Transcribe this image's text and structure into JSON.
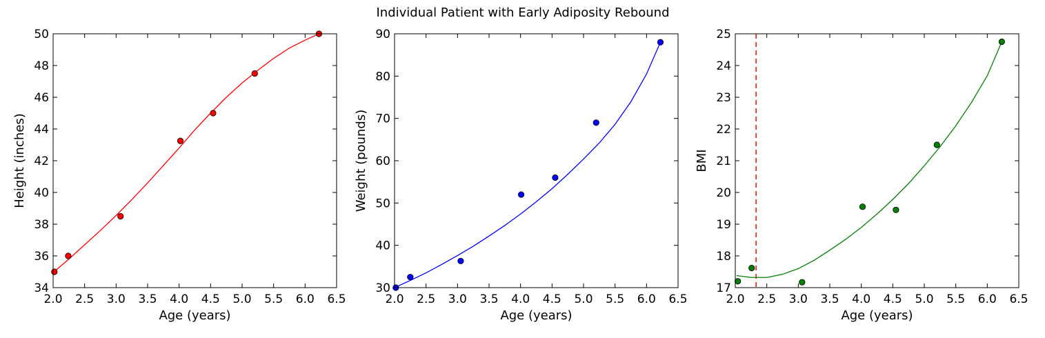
{
  "figure": {
    "title": "Individual Patient with Early Adiposity Rebound"
  },
  "chart_data": [
    {
      "type": "scatter",
      "xlabel": "Age (years)",
      "ylabel": "Height (inches)",
      "xlim": [
        2.0,
        6.5
      ],
      "ylim": [
        34,
        50
      ],
      "xticks": [
        2.0,
        2.5,
        3.0,
        3.5,
        4.0,
        4.5,
        5.0,
        5.5,
        6.0,
        6.5
      ],
      "yticks": [
        34,
        36,
        38,
        40,
        42,
        44,
        46,
        48,
        50
      ],
      "grid": false,
      "color": "#ff0000",
      "points": {
        "x": [
          2.02,
          2.24,
          3.07,
          4.02,
          4.54,
          5.2,
          6.22
        ],
        "y": [
          35.0,
          36.0,
          38.5,
          43.25,
          45.0,
          47.5,
          50.0
        ]
      },
      "fit_curve": {
        "x": [
          2.0,
          2.25,
          2.5,
          2.75,
          3.0,
          3.25,
          3.5,
          3.75,
          4.0,
          4.25,
          4.5,
          4.75,
          5.0,
          5.25,
          5.5,
          5.75,
          6.0,
          6.22
        ],
        "y": [
          34.95,
          35.8,
          36.7,
          37.6,
          38.55,
          39.55,
          40.6,
          41.7,
          42.8,
          43.95,
          45.0,
          46.0,
          46.9,
          47.7,
          48.45,
          49.1,
          49.6,
          50.0
        ]
      }
    },
    {
      "type": "scatter",
      "xlabel": "Age (years)",
      "ylabel": "Weight (pounds)",
      "xlim": [
        2.0,
        6.5
      ],
      "ylim": [
        30,
        90
      ],
      "xticks": [
        2.0,
        2.5,
        3.0,
        3.5,
        4.0,
        4.5,
        5.0,
        5.5,
        6.0,
        6.5
      ],
      "yticks": [
        30,
        40,
        50,
        60,
        70,
        80,
        90
      ],
      "grid": false,
      "color": "#0000ff",
      "points": {
        "x": [
          2.02,
          2.25,
          3.05,
          4.01,
          4.55,
          5.2,
          6.22
        ],
        "y": [
          30.0,
          32.5,
          36.3,
          52.0,
          56.0,
          69.0,
          88.0
        ]
      },
      "fit_curve": {
        "x": [
          2.0,
          2.25,
          2.5,
          2.75,
          3.0,
          3.25,
          3.5,
          3.75,
          4.0,
          4.25,
          4.5,
          4.75,
          5.0,
          5.25,
          5.5,
          5.75,
          6.0,
          6.22
        ],
        "y": [
          30.0,
          31.7,
          33.5,
          35.5,
          37.6,
          39.8,
          42.2,
          44.7,
          47.4,
          50.3,
          53.4,
          56.8,
          60.4,
          64.2,
          68.6,
          73.9,
          80.5,
          88.0
        ]
      }
    },
    {
      "type": "scatter",
      "xlabel": "Age (years)",
      "ylabel": "BMI",
      "xlim": [
        2.0,
        6.5
      ],
      "ylim": [
        17,
        25
      ],
      "xticks": [
        2.0,
        2.5,
        3.0,
        3.5,
        4.0,
        4.5,
        5.0,
        5.5,
        6.0,
        6.5
      ],
      "yticks": [
        17,
        18,
        19,
        20,
        21,
        22,
        23,
        24,
        25
      ],
      "grid": false,
      "color": "#008000",
      "points": {
        "x": [
          2.04,
          2.26,
          3.06,
          4.02,
          4.55,
          5.2,
          6.23
        ],
        "y": [
          17.2,
          17.62,
          17.17,
          19.55,
          19.45,
          21.5,
          24.75
        ]
      },
      "fit_curve": {
        "x": [
          2.02,
          2.25,
          2.5,
          2.75,
          3.0,
          3.25,
          3.5,
          3.75,
          4.0,
          4.25,
          4.5,
          4.75,
          5.0,
          5.25,
          5.5,
          5.75,
          6.0,
          6.23
        ],
        "y": [
          17.38,
          17.32,
          17.32,
          17.42,
          17.6,
          17.86,
          18.18,
          18.52,
          18.9,
          19.32,
          19.78,
          20.28,
          20.84,
          21.44,
          22.1,
          22.84,
          23.68,
          24.75
        ]
      },
      "vline": {
        "x": 2.33,
        "color": "#ff0000",
        "style": "dashed"
      }
    }
  ]
}
